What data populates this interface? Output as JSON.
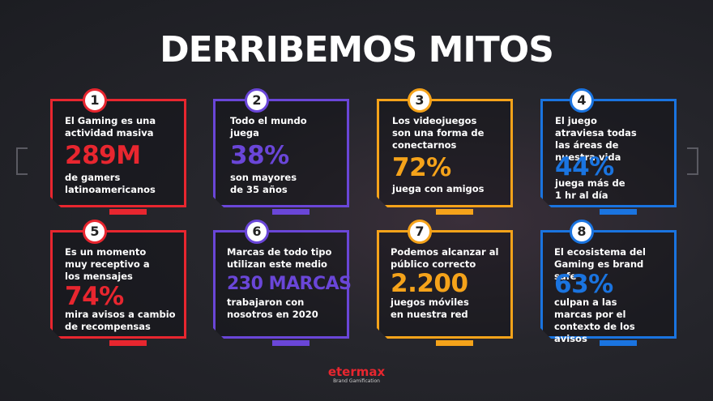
{
  "title": "DERRIBEMOS MITOS",
  "colors": {
    "red": "#e8262f",
    "purple": "#6a46d8",
    "orange": "#f5a31a",
    "blue": "#1a74e0"
  },
  "cards": [
    {
      "number": "1",
      "pre": "El Gaming es una actividad masiva",
      "stat": "289M",
      "post": "de gamers latinoamericanos"
    },
    {
      "number": "2",
      "pre": "Todo el mundo juega",
      "stat": "38%",
      "post": "son mayores de 35 años"
    },
    {
      "number": "3",
      "pre": "Los videojuegos son una forma de conectarnos",
      "stat": "72%",
      "post": "juega con amigos"
    },
    {
      "number": "4",
      "pre": "El juego atraviesa todas las áreas de nuestra vida",
      "stat": "44%",
      "post": "juega más de 1 hr al día"
    },
    {
      "number": "5",
      "pre": "Es un momento muy receptivo a los mensajes",
      "stat": "74%",
      "post": "mira avisos a cambio de recompensas"
    },
    {
      "number": "6",
      "pre": "Marcas de todo tipo utilizan este medio",
      "stat": "230 MARCAS",
      "post": "trabajaron con nosotros en 2020"
    },
    {
      "number": "7",
      "pre": "Podemos alcanzar al público correcto",
      "stat": "2.200",
      "post": "juegos móviles en nuestra red"
    },
    {
      "number": "8",
      "pre": "El ecosistema del Gaming es brand safe",
      "stat": "63%",
      "post": "culpan a las marcas por el contexto de los avisos"
    }
  ],
  "logo": {
    "brand": "etermax",
    "tagline": "Brand Gamification"
  }
}
